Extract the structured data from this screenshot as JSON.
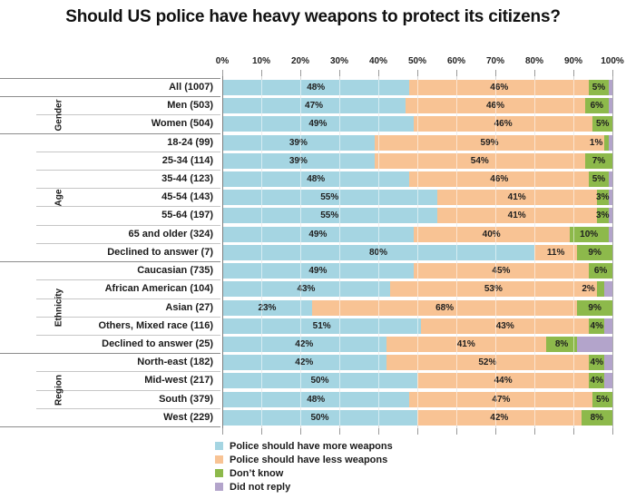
{
  "title": "Should US police have heavy weapons to protect its citizens?",
  "colors": {
    "more": "#A5D5E2",
    "less": "#F8C394",
    "dont_know": "#8DB94B",
    "did_not_reply": "#B3A4CB"
  },
  "axis": {
    "ticks": [
      "0%",
      "10%",
      "20%",
      "30%",
      "40%",
      "50%",
      "60%",
      "70%",
      "80%",
      "90%",
      "100%"
    ],
    "min": 0,
    "max": 100
  },
  "legend": [
    {
      "key": "more",
      "label": "Police should have more weapons"
    },
    {
      "key": "less",
      "label": "Police should have less weapons"
    },
    {
      "key": "dont_know",
      "label": "Don’t know"
    },
    {
      "key": "did_not_reply",
      "label": "Did not reply"
    }
  ],
  "chart_data": {
    "type": "bar",
    "stacked": true,
    "orientation": "horizontal",
    "title": "Should US police have heavy weapons to protect its citizens?",
    "xlabel": "",
    "ylabel": "",
    "xlim": [
      0,
      100
    ],
    "grid": true,
    "legend_position": "bottom",
    "series_keys": [
      "more",
      "less",
      "dont_know",
      "did_not_reply"
    ],
    "series_labels": [
      "Police should have more weapons",
      "Police should have less weapons",
      "Don’t know",
      "Did not reply"
    ],
    "rows": [
      {
        "group": "",
        "label": "All (1007)",
        "more": 48,
        "less": 46,
        "dont_know": 5,
        "did_not_reply": 1
      },
      {
        "group": "Gender",
        "label": "Men (503)",
        "more": 47,
        "less": 46,
        "dont_know": 6,
        "did_not_reply": 1
      },
      {
        "group": "Gender",
        "label": "Women (504)",
        "more": 49,
        "less": 46,
        "dont_know": 5,
        "did_not_reply": 0
      },
      {
        "group": "Age",
        "label": "18-24 (99)",
        "more": 39,
        "less": 59,
        "dont_know": 1,
        "did_not_reply": 1
      },
      {
        "group": "Age",
        "label": "25-34 (114)",
        "more": 39,
        "less": 54,
        "dont_know": 7,
        "did_not_reply": 0
      },
      {
        "group": "Age",
        "label": "35-44 (123)",
        "more": 48,
        "less": 46,
        "dont_know": 5,
        "did_not_reply": 1
      },
      {
        "group": "Age",
        "label": "45-54 (143)",
        "more": 55,
        "less": 41,
        "dont_know": 3,
        "did_not_reply": 1
      },
      {
        "group": "Age",
        "label": "55-64 (197)",
        "more": 55,
        "less": 41,
        "dont_know": 3,
        "did_not_reply": 1
      },
      {
        "group": "Age",
        "label": "65 and older (324)",
        "more": 49,
        "less": 40,
        "dont_know": 10,
        "did_not_reply": 1
      },
      {
        "group": "Age",
        "label": "Declined to answer (7)",
        "more": 80,
        "less": 11,
        "dont_know": 9,
        "did_not_reply": 0
      },
      {
        "group": "Ethnicity",
        "label": "Caucasian (735)",
        "more": 49,
        "less": 45,
        "dont_know": 6,
        "did_not_reply": 0
      },
      {
        "group": "Ethnicity",
        "label": "African American (104)",
        "more": 43,
        "less": 53,
        "dont_know": 2,
        "did_not_reply": 2
      },
      {
        "group": "Ethnicity",
        "label": "Asian (27)",
        "more": 23,
        "less": 68,
        "dont_know": 9,
        "did_not_reply": 0
      },
      {
        "group": "Ethnicity",
        "label": "Others, Mixed race (116)",
        "more": 51,
        "less": 43,
        "dont_know": 4,
        "did_not_reply": 2
      },
      {
        "group": "Ethnicity",
        "label": "Declined to answer (25)",
        "more": 42,
        "less": 41,
        "dont_know": 8,
        "did_not_reply": 9
      },
      {
        "group": "Region",
        "label": "North-east (182)",
        "more": 42,
        "less": 52,
        "dont_know": 4,
        "did_not_reply": 2
      },
      {
        "group": "Region",
        "label": "Mid-west (217)",
        "more": 50,
        "less": 44,
        "dont_know": 4,
        "did_not_reply": 2
      },
      {
        "group": "Region",
        "label": "South (379)",
        "more": 48,
        "less": 47,
        "dont_know": 5,
        "did_not_reply": 0
      },
      {
        "group": "Region",
        "label": "West (229)",
        "more": 50,
        "less": 42,
        "dont_know": 8,
        "did_not_reply": 0
      }
    ]
  }
}
